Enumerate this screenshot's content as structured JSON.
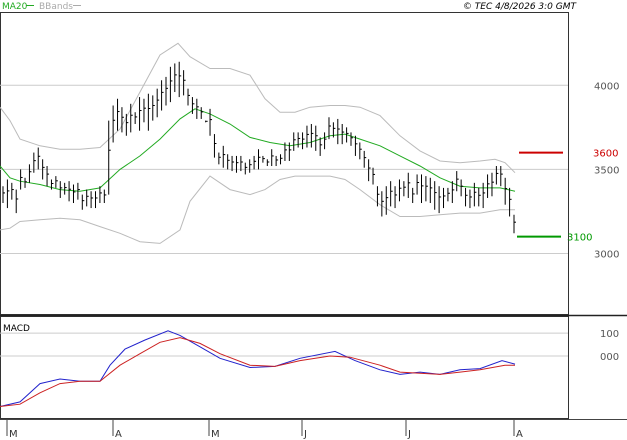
{
  "header": {
    "ma_label": "MA20",
    "bbands_label": "BBands",
    "timestamp": "© TEC 4/8/2026 3:0 GMT"
  },
  "macd_label": "MACD",
  "colors": {
    "ma": "#22aa22",
    "bbands": "#bbbbbb",
    "price_bars": "#000000",
    "macd_line": "#2222cc",
    "signal_line": "#cc2222",
    "resistance": "#cc0000",
    "support": "#009900",
    "grid": "#cccccc"
  },
  "chart_data": [
    {
      "type": "ohlc",
      "name": "price",
      "ylim": [
        2640,
        4430
      ],
      "yticks": [
        {
          "value": 3000,
          "label": "3000"
        },
        {
          "value": 3500,
          "label": "3500"
        },
        {
          "value": 4000,
          "label": "4000"
        }
      ],
      "xticks": [
        "M",
        "A",
        "M",
        "J",
        "J",
        "A"
      ],
      "levels": [
        {
          "name": "resistance",
          "value": 3600,
          "label": "3600"
        },
        {
          "name": "support",
          "value": 3100,
          "label": "3100"
        }
      ],
      "bars": [
        [
          3400,
          3300
        ],
        [
          3440,
          3270
        ],
        [
          3420,
          3320
        ],
        [
          3380,
          3240
        ],
        [
          3500,
          3380
        ],
        [
          3450,
          3390
        ],
        [
          3530,
          3420
        ],
        [
          3600,
          3480
        ],
        [
          3630,
          3500
        ],
        [
          3560,
          3440
        ],
        [
          3520,
          3400
        ],
        [
          3440,
          3380
        ],
        [
          3460,
          3390
        ],
        [
          3430,
          3330
        ],
        [
          3420,
          3350
        ],
        [
          3430,
          3310
        ],
        [
          3410,
          3300
        ],
        [
          3420,
          3320
        ],
        [
          3350,
          3260
        ],
        [
          3380,
          3280
        ],
        [
          3370,
          3270
        ],
        [
          3370,
          3270
        ],
        [
          3400,
          3300
        ],
        [
          3380,
          3300
        ],
        [
          3790,
          3350
        ],
        [
          3880,
          3660
        ],
        [
          3920,
          3730
        ],
        [
          3870,
          3720
        ],
        [
          3830,
          3700
        ],
        [
          3890,
          3720
        ],
        [
          3840,
          3770
        ],
        [
          3930,
          3730
        ],
        [
          3920,
          3780
        ],
        [
          3950,
          3730
        ],
        [
          3940,
          3790
        ],
        [
          3980,
          3810
        ],
        [
          4030,
          3850
        ],
        [
          4050,
          3880
        ],
        [
          4110,
          3900
        ],
        [
          4130,
          3960
        ],
        [
          4140,
          3930
        ],
        [
          4090,
          3940
        ],
        [
          3980,
          3880
        ],
        [
          3930,
          3830
        ],
        [
          3920,
          3800
        ],
        [
          3870,
          3800
        ],
        [
          3790,
          3780
        ],
        [
          3860,
          3700
        ],
        [
          3710,
          3570
        ],
        [
          3600,
          3530
        ],
        [
          3640,
          3510
        ],
        [
          3590,
          3500
        ],
        [
          3580,
          3490
        ],
        [
          3580,
          3480
        ],
        [
          3580,
          3490
        ],
        [
          3540,
          3470
        ],
        [
          3560,
          3480
        ],
        [
          3580,
          3500
        ],
        [
          3620,
          3500
        ],
        [
          3580,
          3540
        ],
        [
          3560,
          3520
        ],
        [
          3620,
          3520
        ],
        [
          3580,
          3520
        ],
        [
          3590,
          3530
        ],
        [
          3660,
          3550
        ],
        [
          3660,
          3550
        ],
        [
          3720,
          3610
        ],
        [
          3720,
          3630
        ],
        [
          3720,
          3620
        ],
        [
          3760,
          3630
        ],
        [
          3770,
          3630
        ],
        [
          3760,
          3610
        ],
        [
          3690,
          3580
        ],
        [
          3720,
          3620
        ],
        [
          3810,
          3680
        ],
        [
          3780,
          3690
        ],
        [
          3800,
          3650
        ],
        [
          3770,
          3650
        ],
        [
          3750,
          3660
        ],
        [
          3720,
          3640
        ],
        [
          3700,
          3580
        ],
        [
          3660,
          3560
        ],
        [
          3610,
          3510
        ],
        [
          3560,
          3430
        ],
        [
          3510,
          3410
        ],
        [
          3400,
          3280
        ],
        [
          3370,
          3220
        ],
        [
          3400,
          3230
        ],
        [
          3430,
          3280
        ],
        [
          3400,
          3270
        ],
        [
          3440,
          3310
        ],
        [
          3430,
          3340
        ],
        [
          3480,
          3330
        ],
        [
          3390,
          3300
        ],
        [
          3470,
          3350
        ],
        [
          3470,
          3300
        ],
        [
          3460,
          3310
        ],
        [
          3450,
          3300
        ],
        [
          3430,
          3260
        ],
        [
          3400,
          3240
        ],
        [
          3390,
          3270
        ],
        [
          3390,
          3310
        ],
        [
          3430,
          3300
        ],
        [
          3490,
          3370
        ],
        [
          3440,
          3340
        ],
        [
          3390,
          3280
        ],
        [
          3380,
          3270
        ],
        [
          3420,
          3280
        ],
        [
          3390,
          3280
        ],
        [
          3420,
          3270
        ],
        [
          3470,
          3330
        ],
        [
          3480,
          3340
        ],
        [
          3520,
          3410
        ],
        [
          3520,
          3400
        ],
        [
          3450,
          3290
        ],
        [
          3390,
          3220
        ],
        [
          3230,
          3120
        ]
      ],
      "ma20": [
        [
          0,
          3520
        ],
        [
          10,
          3450
        ],
        [
          20,
          3430
        ],
        [
          40,
          3410
        ],
        [
          60,
          3380
        ],
        [
          80,
          3370
        ],
        [
          100,
          3390
        ],
        [
          120,
          3500
        ],
        [
          140,
          3580
        ],
        [
          160,
          3680
        ],
        [
          180,
          3800
        ],
        [
          195,
          3860
        ],
        [
          210,
          3830
        ],
        [
          230,
          3770
        ],
        [
          250,
          3690
        ],
        [
          270,
          3660
        ],
        [
          290,
          3640
        ],
        [
          310,
          3660
        ],
        [
          330,
          3700
        ],
        [
          345,
          3710
        ],
        [
          360,
          3680
        ],
        [
          380,
          3640
        ],
        [
          400,
          3580
        ],
        [
          420,
          3520
        ],
        [
          440,
          3450
        ],
        [
          460,
          3400
        ],
        [
          480,
          3390
        ],
        [
          500,
          3390
        ],
        [
          515,
          3370
        ]
      ],
      "bb_upper": [
        [
          0,
          3870
        ],
        [
          10,
          3790
        ],
        [
          20,
          3680
        ],
        [
          40,
          3640
        ],
        [
          60,
          3620
        ],
        [
          80,
          3620
        ],
        [
          100,
          3630
        ],
        [
          120,
          3740
        ],
        [
          140,
          3960
        ],
        [
          160,
          4180
        ],
        [
          178,
          4250
        ],
        [
          190,
          4170
        ],
        [
          210,
          4100
        ],
        [
          230,
          4100
        ],
        [
          250,
          4060
        ],
        [
          265,
          3920
        ],
        [
          280,
          3840
        ],
        [
          295,
          3840
        ],
        [
          310,
          3870
        ],
        [
          330,
          3880
        ],
        [
          345,
          3880
        ],
        [
          360,
          3870
        ],
        [
          380,
          3820
        ],
        [
          400,
          3700
        ],
        [
          420,
          3610
        ],
        [
          440,
          3550
        ],
        [
          460,
          3540
        ],
        [
          480,
          3550
        ],
        [
          495,
          3560
        ],
        [
          505,
          3540
        ],
        [
          515,
          3480
        ]
      ],
      "bb_lower": [
        [
          0,
          3140
        ],
        [
          10,
          3150
        ],
        [
          20,
          3190
        ],
        [
          40,
          3200
        ],
        [
          60,
          3210
        ],
        [
          80,
          3200
        ],
        [
          100,
          3160
        ],
        [
          120,
          3120
        ],
        [
          140,
          3070
        ],
        [
          160,
          3060
        ],
        [
          180,
          3140
        ],
        [
          190,
          3310
        ],
        [
          210,
          3460
        ],
        [
          230,
          3380
        ],
        [
          250,
          3350
        ],
        [
          265,
          3380
        ],
        [
          280,
          3440
        ],
        [
          295,
          3460
        ],
        [
          310,
          3460
        ],
        [
          330,
          3460
        ],
        [
          345,
          3440
        ],
        [
          360,
          3380
        ],
        [
          380,
          3290
        ],
        [
          400,
          3220
        ],
        [
          420,
          3220
        ],
        [
          440,
          3230
        ],
        [
          460,
          3240
        ],
        [
          480,
          3240
        ],
        [
          500,
          3260
        ],
        [
          515,
          3260
        ]
      ]
    },
    {
      "type": "line",
      "name": "MACD",
      "ylim": [
        -270,
        170
      ],
      "yticks": [
        {
          "value": 0,
          "label": "000"
        },
        {
          "value": 100,
          "label": "100"
        }
      ],
      "series": [
        {
          "values": [
            [
              0,
              -220
            ],
            [
              20,
              -200
            ],
            [
              40,
              -120
            ],
            [
              60,
              -100
            ],
            [
              80,
              -110
            ],
            [
              100,
              -110
            ],
            [
              110,
              -40
            ],
            [
              125,
              30
            ],
            [
              145,
              70
            ],
            [
              168,
              110
            ],
            [
              180,
              90
            ],
            [
              200,
              40
            ],
            [
              220,
              -10
            ],
            [
              250,
              -50
            ],
            [
              275,
              -45
            ],
            [
              300,
              -10
            ],
            [
              335,
              20
            ],
            [
              355,
              -20
            ],
            [
              380,
              -60
            ],
            [
              400,
              -80
            ],
            [
              420,
              -70
            ],
            [
              440,
              -80
            ],
            [
              460,
              -60
            ],
            [
              480,
              -55
            ],
            [
              502,
              -20
            ],
            [
              515,
              -35
            ]
          ]
        },
        {
          "values": [
            [
              0,
              -220
            ],
            [
              20,
              -210
            ],
            [
              40,
              -160
            ],
            [
              60,
              -120
            ],
            [
              80,
              -110
            ],
            [
              100,
              -110
            ],
            [
              120,
              -40
            ],
            [
              140,
              10
            ],
            [
              160,
              60
            ],
            [
              180,
              80
            ],
            [
              200,
              55
            ],
            [
              220,
              10
            ],
            [
              250,
              -40
            ],
            [
              275,
              -45
            ],
            [
              300,
              -20
            ],
            [
              330,
              0
            ],
            [
              350,
              -5
            ],
            [
              380,
              -40
            ],
            [
              400,
              -70
            ],
            [
              420,
              -75
            ],
            [
              440,
              -80
            ],
            [
              460,
              -70
            ],
            [
              480,
              -60
            ],
            [
              505,
              -40
            ],
            [
              515,
              -40
            ]
          ]
        }
      ]
    }
  ]
}
